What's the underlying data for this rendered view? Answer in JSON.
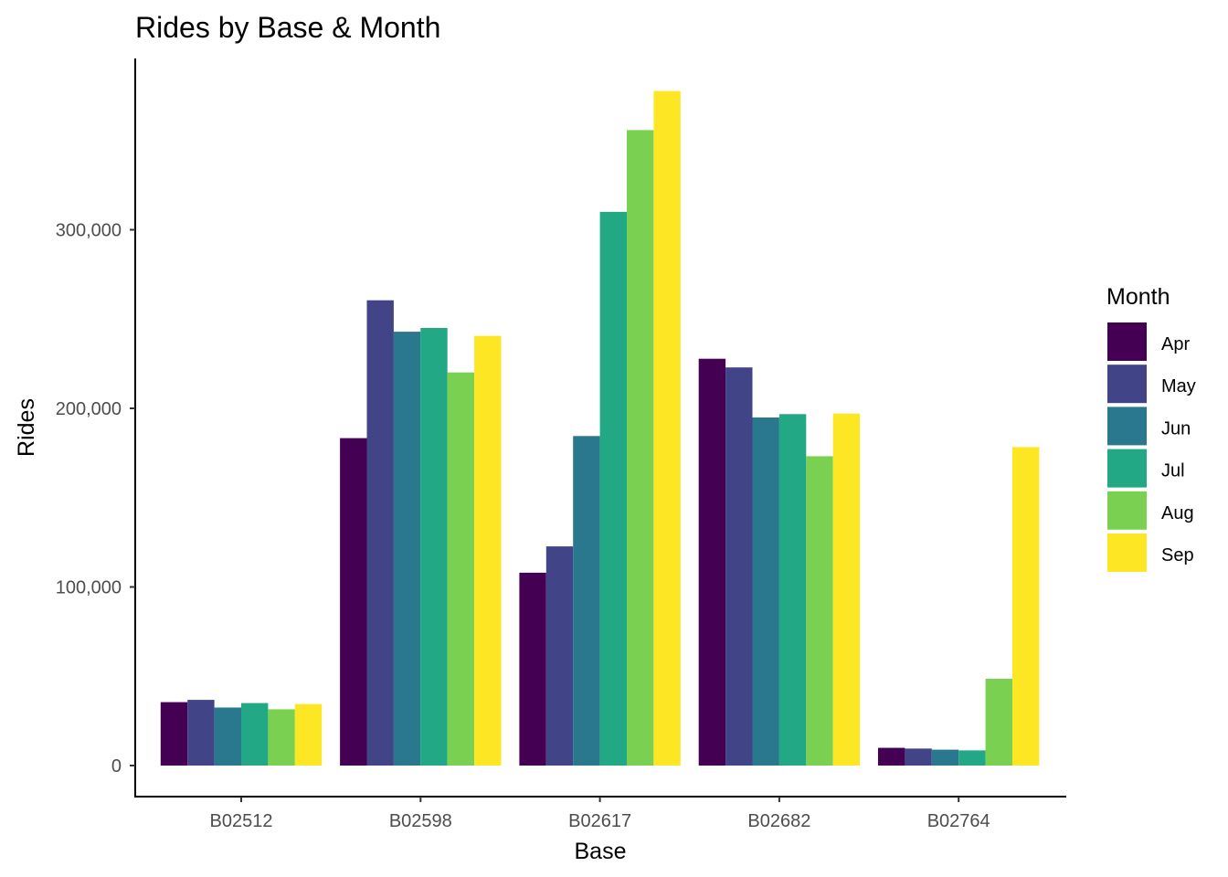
{
  "chart_data": {
    "type": "bar",
    "title": "Rides by Base & Month",
    "xlabel": "Base",
    "ylabel": "Rides",
    "categories": [
      "B02512",
      "B02598",
      "B02617",
      "B02682",
      "B02764"
    ],
    "series": [
      {
        "name": "Apr",
        "color": "#440154",
        "values": [
          35500,
          183300,
          108000,
          227800,
          9900
        ]
      },
      {
        "name": "May",
        "color": "#414487",
        "values": [
          36800,
          260500,
          122700,
          222900,
          9500
        ]
      },
      {
        "name": "Jun",
        "color": "#2A788E",
        "values": [
          32500,
          242900,
          184500,
          194900,
          8900
        ]
      },
      {
        "name": "Jul",
        "color": "#22A884",
        "values": [
          35000,
          245000,
          310000,
          196800,
          8500
        ]
      },
      {
        "name": "Aug",
        "color": "#7AD151",
        "values": [
          31500,
          220100,
          355800,
          173200,
          48600
        ]
      },
      {
        "name": "Sep",
        "color": "#FDE725",
        "values": [
          34400,
          240600,
          377700,
          197100,
          178300
        ]
      }
    ],
    "ylim": [
      0,
      390000
    ],
    "yticks": [
      0,
      100000,
      200000,
      300000
    ],
    "ytick_labels": [
      "0",
      "100,000",
      "200,000",
      "300,000"
    ],
    "grid": false,
    "legend": {
      "title": "Month",
      "position": "right"
    }
  }
}
